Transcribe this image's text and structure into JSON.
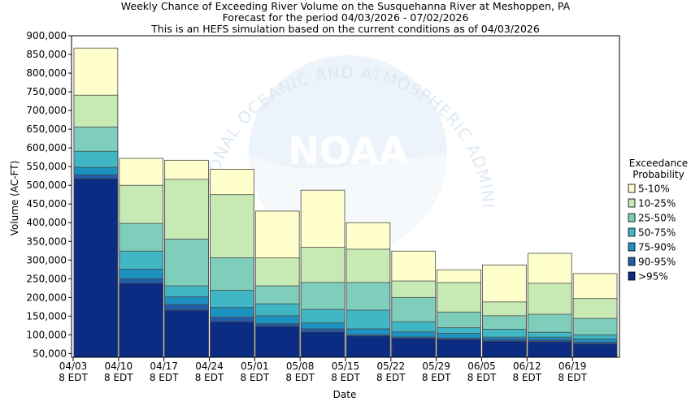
{
  "chart_data": {
    "type": "bar",
    "stacked": true,
    "title": [
      "Weekly Chance of Exceeding River Volume on the Susquehanna River at Meshoppen, PA",
      "Forecast for the period 04/03/2026 - 07/02/2026",
      "This is an HEFS simulation based on the current conditions as of 04/03/2026"
    ],
    "xlabel": "Date",
    "ylabel": "Volume (AC-FT)",
    "ylim": [
      40000,
      900000
    ],
    "yticks": [
      "50,000",
      "100,000",
      "150,000",
      "200,000",
      "250,000",
      "300,000",
      "350,000",
      "400,000",
      "450,000",
      "500,000",
      "550,000",
      "600,000",
      "650,000",
      "700,000",
      "750,000",
      "800,000",
      "850,000",
      "900,000"
    ],
    "xticks": [
      {
        "line1": "04/03",
        "line2": "8 EDT"
      },
      {
        "line1": "04/10",
        "line2": "8 EDT"
      },
      {
        "line1": "04/17",
        "line2": "8 EDT"
      },
      {
        "line1": "04/24",
        "line2": "8 EDT"
      },
      {
        "line1": "05/01",
        "line2": "8 EDT"
      },
      {
        "line1": "05/08",
        "line2": "8 EDT"
      },
      {
        "line1": "05/15",
        "line2": "8 EDT"
      },
      {
        "line1": "05/22",
        "line2": "8 EDT"
      },
      {
        "line1": "05/29",
        "line2": "8 EDT"
      },
      {
        "line1": "06/05",
        "line2": "8 EDT"
      },
      {
        "line1": "06/12",
        "line2": "8 EDT"
      },
      {
        "line1": "06/19",
        "line2": "8 EDT"
      }
    ],
    "legend_title": [
      "Exceedance",
      "Probability"
    ],
    "legend_position": "right",
    "series": [
      {
        "name": "5-10%",
        "color": "#ffffcc",
        "tops": [
          867000,
          572000,
          567000,
          543000,
          431000,
          487000,
          400000,
          324000,
          274000,
          287000,
          318000,
          264000
        ]
      },
      {
        "name": "10-25%",
        "color": "#c7e9b4",
        "tops": [
          741000,
          500000,
          516000,
          475000,
          306000,
          334000,
          329000,
          244000,
          240000,
          188000,
          238000,
          197000
        ]
      },
      {
        "name": "25-50%",
        "color": "#7fcdbb",
        "tops": [
          656000,
          398000,
          356000,
          306000,
          231000,
          240000,
          240000,
          200000,
          161000,
          151000,
          155000,
          144000
        ]
      },
      {
        "name": "50-75%",
        "color": "#41b6c4",
        "tops": [
          591000,
          324000,
          231000,
          219000,
          183000,
          168000,
          166000,
          135000,
          119000,
          115000,
          107000,
          100000
        ]
      },
      {
        "name": "75-90%",
        "color": "#1d91c0",
        "tops": [
          548000,
          276000,
          202000,
          173000,
          151000,
          132000,
          116000,
          108000,
          104000,
          94000,
          94000,
          89000
        ]
      },
      {
        "name": "90-95%",
        "color": "#225ea8",
        "tops": [
          528000,
          250000,
          181000,
          147000,
          130000,
          116000,
          100000,
          94000,
          91000,
          88000,
          87000,
          80000
        ]
      },
      {
        "name": ">95%",
        "color": "#0c2c84",
        "tops": [
          518000,
          238000,
          166000,
          135000,
          123000,
          108000,
          97000,
          91000,
          88000,
          83000,
          82000,
          76000
        ]
      }
    ]
  },
  "watermark": {
    "logo_text": "NOAA",
    "ring_text": "NATIONAL OCEANIC AND ATMOSPHERIC ADMINISTRATION"
  }
}
